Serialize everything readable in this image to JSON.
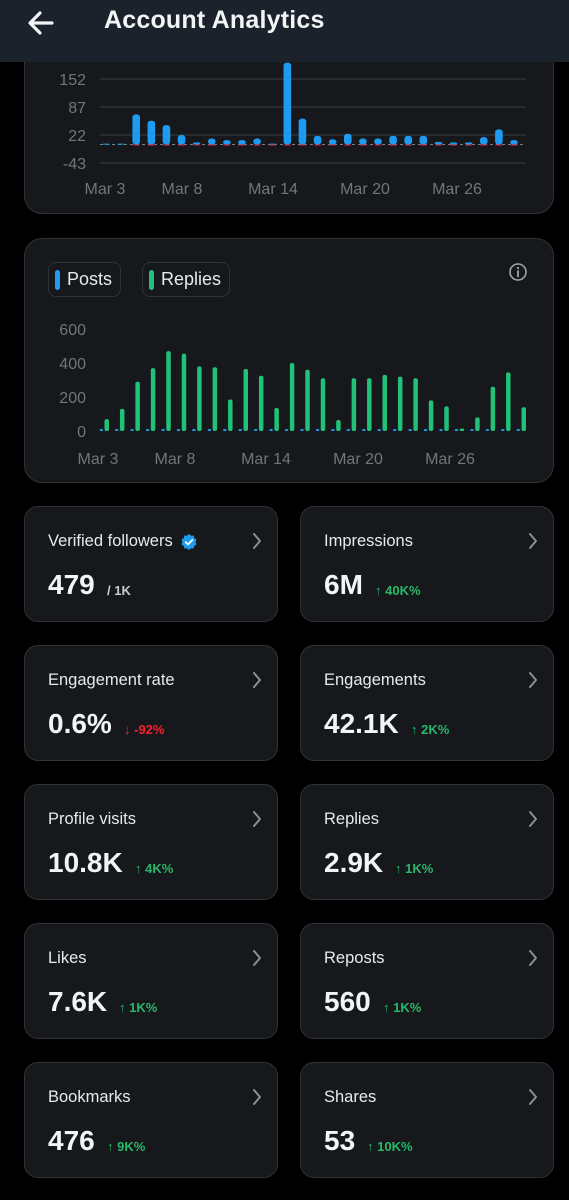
{
  "header": {
    "title": "Account Analytics"
  },
  "chart_top": {
    "y_ticks": [
      "152",
      "87",
      "22",
      "-43"
    ],
    "x_ticks": [
      "Mar 3",
      "Mar 8",
      "Mar 14",
      "Mar 20",
      "Mar 26"
    ]
  },
  "chart_data": [
    {
      "type": "bar",
      "ylim": [
        -43,
        190
      ],
      "y_ticks": [
        152,
        87,
        22,
        -43
      ],
      "x_ticks": [
        "Mar 3",
        "Mar 8",
        "Mar 14",
        "Mar 20",
        "Mar 26"
      ],
      "series": [
        {
          "values": [
            2,
            2,
            70,
            55,
            45,
            22,
            5,
            14,
            10,
            10,
            14,
            2,
            190,
            60,
            20,
            12,
            25,
            14,
            14,
            20,
            20,
            20,
            6,
            5,
            5,
            17,
            35,
            10
          ]
        },
        {
          "values": [
            0,
            0,
            -8,
            -10,
            -10,
            -8,
            -8,
            -6,
            -8,
            -10,
            -6,
            -6,
            -35,
            -40,
            -20,
            -12,
            -10,
            -10,
            -14,
            -10,
            -14,
            -20,
            -8,
            -8,
            -10,
            -6,
            -10,
            -8
          ]
        }
      ],
      "colors": [
        "#1d9bf0",
        "#f4212e"
      ]
    },
    {
      "type": "bar",
      "legend": [
        "Posts",
        "Replies"
      ],
      "colors": [
        "#1d9bf0",
        "#22c17a"
      ],
      "ylim": [
        0,
        600
      ],
      "y_ticks": [
        600,
        400,
        200,
        0
      ],
      "x_ticks": [
        "Mar 3",
        "Mar 8",
        "Mar 14",
        "Mar 20",
        "Mar 26"
      ],
      "series": [
        {
          "name": "Posts",
          "values": [
            5,
            5,
            5,
            10,
            10,
            5,
            5,
            5,
            5,
            5,
            5,
            5,
            5,
            10,
            5,
            5,
            5,
            5,
            5,
            5,
            5,
            5,
            5,
            5,
            5,
            5,
            5,
            5
          ]
        },
        {
          "name": "Replies",
          "values": [
            70,
            130,
            290,
            370,
            470,
            455,
            380,
            375,
            185,
            365,
            325,
            135,
            400,
            360,
            310,
            65,
            310,
            310,
            330,
            320,
            310,
            180,
            145,
            15,
            80,
            260,
            345,
            140
          ]
        }
      ]
    }
  ],
  "legend": {
    "posts": "Posts",
    "replies": "Replies"
  },
  "stats": [
    {
      "label": "Verified followers",
      "value": "479",
      "sub": "/ 1K",
      "change": "",
      "dir": ""
    },
    {
      "label": "Impressions",
      "value": "6M",
      "change": "↑ 40K%",
      "dir": "up"
    },
    {
      "label": "Engagement rate",
      "value": "0.6%",
      "change": "↓ -92%",
      "dir": "down"
    },
    {
      "label": "Engagements",
      "value": "42.1K",
      "change": "↑ 2K%",
      "dir": "up"
    },
    {
      "label": "Profile visits",
      "value": "10.8K",
      "change": "↑ 4K%",
      "dir": "up"
    },
    {
      "label": "Replies",
      "value": "2.9K",
      "change": "↑ 1K%",
      "dir": "up"
    },
    {
      "label": "Likes",
      "value": "7.6K",
      "change": "↑ 1K%",
      "dir": "up"
    },
    {
      "label": "Reposts",
      "value": "560",
      "change": "↑ 1K%",
      "dir": "up"
    },
    {
      "label": "Bookmarks",
      "value": "476",
      "change": "↑ 9K%",
      "dir": "up"
    },
    {
      "label": "Shares",
      "value": "53",
      "change": "↑ 10K%",
      "dir": "up"
    }
  ]
}
